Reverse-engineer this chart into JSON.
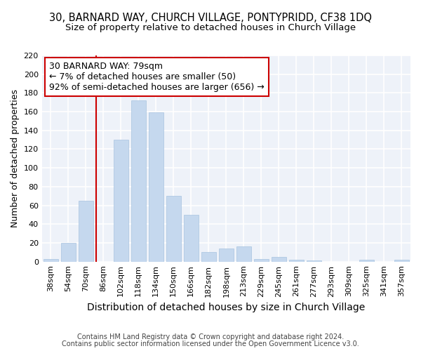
{
  "title": "30, BARNARD WAY, CHURCH VILLAGE, PONTYPRIDD, CF38 1DQ",
  "subtitle": "Size of property relative to detached houses in Church Village",
  "xlabel": "Distribution of detached houses by size in Church Village",
  "ylabel": "Number of detached properties",
  "categories": [
    "38sqm",
    "54sqm",
    "70sqm",
    "86sqm",
    "102sqm",
    "118sqm",
    "134sqm",
    "150sqm",
    "166sqm",
    "182sqm",
    "198sqm",
    "213sqm",
    "229sqm",
    "245sqm",
    "261sqm",
    "277sqm",
    "293sqm",
    "309sqm",
    "325sqm",
    "341sqm",
    "357sqm"
  ],
  "values": [
    3,
    20,
    65,
    0,
    130,
    172,
    159,
    70,
    50,
    10,
    14,
    16,
    3,
    5,
    2,
    1,
    0,
    0,
    2,
    0,
    2
  ],
  "bar_color": "#c5d8ee",
  "bar_edge_color": "#a8c4e0",
  "red_line_index": 3,
  "annotation_line1": "30 BARNARD WAY: 79sqm",
  "annotation_line2": "← 7% of detached houses are smaller (50)",
  "annotation_line3": "92% of semi-detached houses are larger (656) →",
  "annotation_box_color": "#ffffff",
  "annotation_box_edge": "#cc0000",
  "footer1": "Contains HM Land Registry data © Crown copyright and database right 2024.",
  "footer2": "Contains public sector information licensed under the Open Government Licence v3.0.",
  "ylim": [
    0,
    220
  ],
  "yticks": [
    0,
    20,
    40,
    60,
    80,
    100,
    120,
    140,
    160,
    180,
    200,
    220
  ],
  "background_color": "#eef2f9",
  "grid_color": "#ffffff",
  "title_fontsize": 10.5,
  "subtitle_fontsize": 9.5,
  "ylabel_fontsize": 9,
  "xlabel_fontsize": 10,
  "tick_fontsize": 8,
  "annot_fontsize": 9,
  "footer_fontsize": 7
}
